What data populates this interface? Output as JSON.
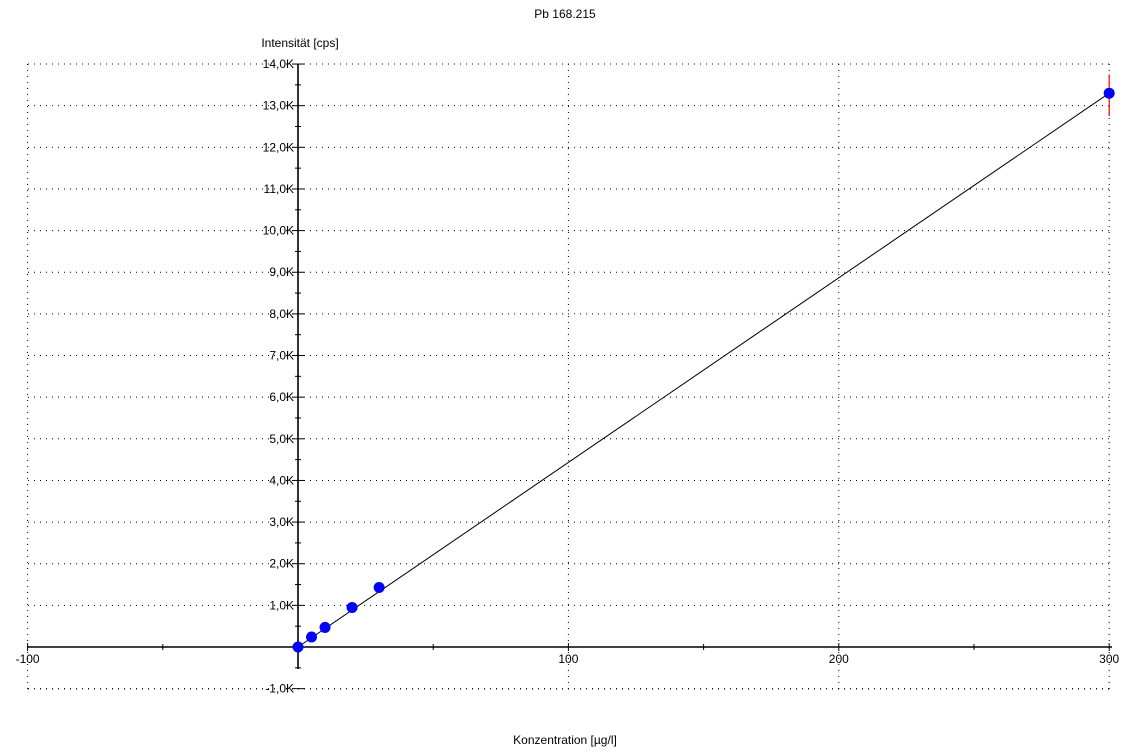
{
  "chart_data": {
    "type": "scatter",
    "title": "Pb 168.215",
    "xlabel": "Konzentration [µg/l]",
    "ylabel": "Intensität [cps]",
    "xlim": [
      -100,
      300
    ],
    "ylim": [
      -1000,
      14000
    ],
    "x_ticks": [
      -100,
      100,
      200,
      300
    ],
    "x_tick_labels": [
      "-100",
      "100",
      "200",
      "300"
    ],
    "y_ticks": [
      -1000,
      1000,
      2000,
      3000,
      4000,
      5000,
      6000,
      7000,
      8000,
      9000,
      10000,
      11000,
      12000,
      13000,
      14000
    ],
    "y_tick_labels": [
      "-1,0K",
      "1,0K",
      "2,0K",
      "3,0K",
      "4,0K",
      "5,0K",
      "6,0K",
      "7,0K",
      "8,0K",
      "9,0K",
      "10,0K",
      "11,0K",
      "12,0K",
      "13,0K",
      "14,0K"
    ],
    "grid": true,
    "points": [
      {
        "x": 0,
        "y": 0
      },
      {
        "x": 5,
        "y": 240
      },
      {
        "x": 10,
        "y": 470
      },
      {
        "x": 20,
        "y": 950
      },
      {
        "x": 30,
        "y": 1430
      },
      {
        "x": 300,
        "y": 13300
      }
    ],
    "fit_line": {
      "x": [
        0,
        300
      ],
      "y": [
        0,
        13300
      ]
    },
    "error_bar": {
      "x": 300,
      "y_low": 12750,
      "y_high": 13750
    },
    "colors": {
      "points": "#0000ff",
      "line": "#000000",
      "error_bar": "#ff0000"
    }
  }
}
